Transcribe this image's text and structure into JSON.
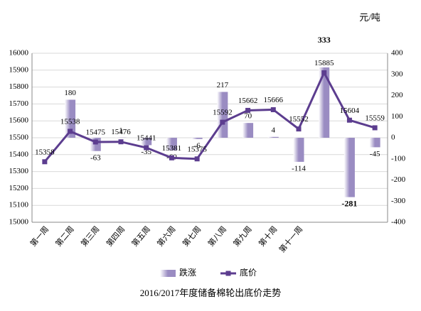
{
  "chart_data": {
    "type": "bar_line",
    "title": "2016/2017年度储备棉轮出底价走势",
    "unit_label": "元/吨",
    "categories": [
      "第一周",
      "第二周",
      "第三周",
      "第四周",
      "第五周",
      "第六周",
      "第七周",
      "第八周",
      "第九周",
      "第十周",
      "第十一周",
      null,
      null,
      null
    ],
    "series": [
      {
        "name": "跌涨",
        "type": "bar",
        "axis": "y2",
        "color": "#9a8cc2",
        "values": [
          null,
          180,
          -63,
          1,
          -35,
          -60,
          -6,
          217,
          70,
          4,
          -114,
          333,
          -281,
          -45
        ]
      },
      {
        "name": "底价",
        "type": "line",
        "color": "#5c3d8f",
        "values": [
          15358,
          15538,
          15475,
          15476,
          15441,
          15381,
          15375,
          15592,
          15662,
          15666,
          15552,
          15885,
          15604,
          15559
        ]
      }
    ],
    "max_label_color": "#c00000",
    "min_label_color": "#00a040",
    "ylim": [
      15000,
      16000
    ],
    "yticks": [
      15000,
      15100,
      15200,
      15300,
      15400,
      15500,
      15600,
      15700,
      15800,
      15900,
      16000
    ],
    "y2lim": [
      -400,
      400
    ],
    "y2ticks": [
      -400,
      -300,
      -200,
      -100,
      0,
      100,
      200,
      300,
      400
    ],
    "grid": true,
    "legend": "bottom"
  }
}
